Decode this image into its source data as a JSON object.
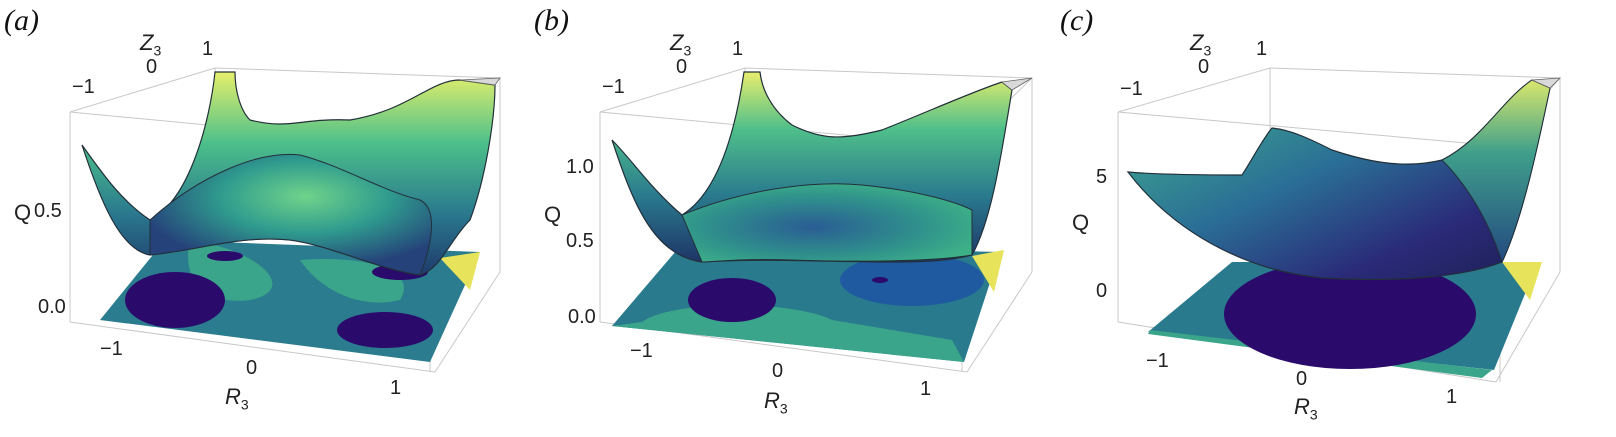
{
  "panels": [
    {
      "label": "(a)",
      "zaxis": "Q",
      "xaxis_var": "R",
      "xaxis_sub": "3",
      "yaxis_var": "Z",
      "yaxis_sub": "3",
      "q_ticks": [
        "0.0",
        "0.5"
      ],
      "r_ticks": [
        "−1",
        "0",
        "1"
      ],
      "z_ticks": [
        "−1",
        "0",
        "1"
      ]
    },
    {
      "label": "(b)",
      "zaxis": "Q",
      "xaxis_var": "R",
      "xaxis_sub": "3",
      "yaxis_var": "Z",
      "yaxis_sub": "3",
      "q_ticks": [
        "0.0",
        "0.5",
        "1.0"
      ],
      "r_ticks": [
        "−1",
        "0",
        "1"
      ],
      "z_ticks": [
        "−1",
        "0",
        "1"
      ]
    },
    {
      "label": "(c)",
      "zaxis": "Q",
      "xaxis_var": "R",
      "xaxis_sub": "3",
      "yaxis_var": "Z",
      "yaxis_sub": "3",
      "q_ticks": [
        "0",
        "5"
      ],
      "r_ticks": [
        "−1",
        "0",
        "1"
      ],
      "z_ticks": [
        "−1",
        "0",
        "1"
      ]
    }
  ],
  "chart_data": [
    {
      "type": "surface",
      "panel": "(a)",
      "x_label": "R3",
      "y_label": "Z3",
      "z_label": "Q",
      "xlim": [
        -1.2,
        1.2
      ],
      "ylim": [
        -1.2,
        1.2
      ],
      "zlim": [
        0.0,
        1.0
      ],
      "z_ticks": [
        0.0,
        0.5
      ],
      "description_values": {
        "double_well": true,
        "colormap": "viridis-like"
      }
    },
    {
      "type": "surface",
      "panel": "(b)",
      "x_label": "R3",
      "y_label": "Z3",
      "z_label": "Q",
      "xlim": [
        -1.2,
        1.2
      ],
      "ylim": [
        -1.2,
        1.2
      ],
      "zlim": [
        0.0,
        1.4
      ],
      "z_ticks": [
        0.0,
        0.5,
        1.0
      ],
      "description_values": {
        "double_well": true,
        "colormap": "viridis-like"
      }
    },
    {
      "type": "surface",
      "panel": "(c)",
      "x_label": "R3",
      "y_label": "Z3",
      "z_label": "Q",
      "xlim": [
        -1.2,
        1.2
      ],
      "ylim": [
        -1.2,
        1.2
      ],
      "zlim": [
        -2,
        8
      ],
      "z_ticks": [
        0,
        5
      ],
      "description_values": {
        "double_well": false,
        "colormap": "viridis-like"
      }
    }
  ]
}
